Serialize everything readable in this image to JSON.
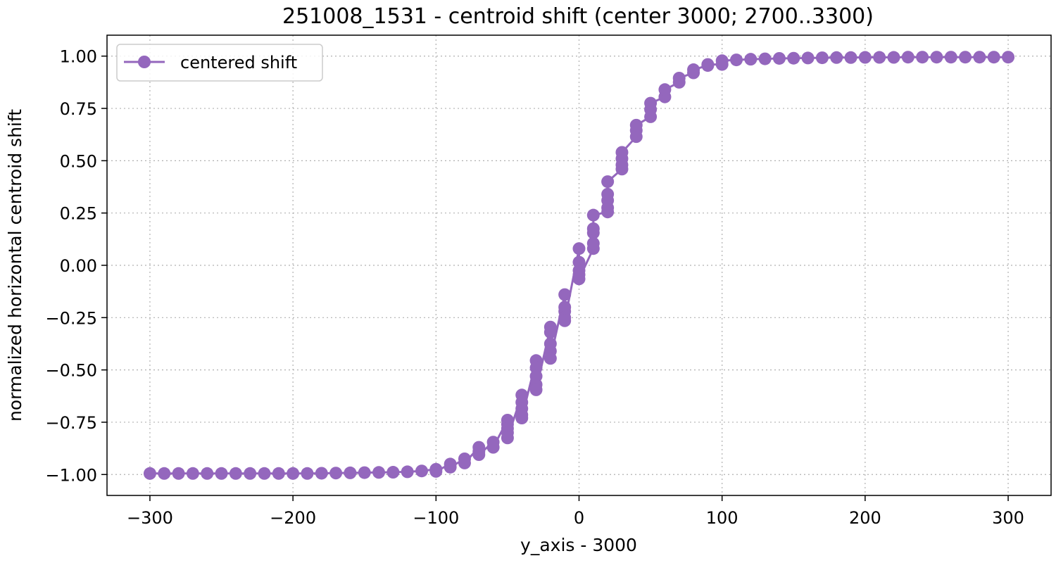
{
  "chart_data": {
    "type": "line",
    "title": "251008_1531 - centroid shift (center 3000; 2700..3300)",
    "xlabel": "y_axis - 3000",
    "ylabel": "normalized horizontal centroid shift",
    "xlim": [
      -330,
      330
    ],
    "ylim": [
      -1.1,
      1.1
    ],
    "xticks": [
      -300,
      -200,
      -100,
      0,
      100,
      200,
      300
    ],
    "xtick_labels": [
      "−300",
      "−200",
      "−100",
      "0",
      "100",
      "200",
      "300"
    ],
    "yticks": [
      -1.0,
      -0.75,
      -0.5,
      -0.25,
      0.0,
      0.25,
      0.5,
      0.75,
      1.0
    ],
    "ytick_labels": [
      "−1.00",
      "−0.75",
      "−0.50",
      "−0.25",
      "0.00",
      "0.25",
      "0.50",
      "0.75",
      "1.00"
    ],
    "grid": true,
    "legend_position": "top-left",
    "series": [
      {
        "name": "centered shift",
        "color": "#9467bd",
        "marker": "circle",
        "points": [
          [
            -300,
            -0.995
          ],
          [
            -290,
            -0.995
          ],
          [
            -280,
            -0.995
          ],
          [
            -270,
            -0.995
          ],
          [
            -260,
            -0.995
          ],
          [
            -250,
            -0.995
          ],
          [
            -240,
            -0.995
          ],
          [
            -230,
            -0.995
          ],
          [
            -220,
            -0.995
          ],
          [
            -210,
            -0.995
          ],
          [
            -200,
            -0.995
          ],
          [
            -190,
            -0.995
          ],
          [
            -180,
            -0.994
          ],
          [
            -170,
            -0.993
          ],
          [
            -160,
            -0.992
          ],
          [
            -150,
            -0.991
          ],
          [
            -140,
            -0.99
          ],
          [
            -130,
            -0.989
          ],
          [
            -120,
            -0.987
          ],
          [
            -110,
            -0.983
          ],
          [
            -100,
            -0.975
          ],
          [
            -100,
            -0.985
          ],
          [
            -90,
            -0.95
          ],
          [
            -90,
            -0.965
          ],
          [
            -80,
            -0.925
          ],
          [
            -80,
            -0.945
          ],
          [
            -70,
            -0.87
          ],
          [
            -70,
            -0.89
          ],
          [
            -70,
            -0.905
          ],
          [
            -60,
            -0.845
          ],
          [
            -60,
            -0.87
          ],
          [
            -50,
            -0.74
          ],
          [
            -50,
            -0.76
          ],
          [
            -50,
            -0.78
          ],
          [
            -50,
            -0.8
          ],
          [
            -50,
            -0.825
          ],
          [
            -40,
            -0.62
          ],
          [
            -40,
            -0.655
          ],
          [
            -40,
            -0.685
          ],
          [
            -40,
            -0.715
          ],
          [
            -40,
            -0.73
          ],
          [
            -30,
            -0.455
          ],
          [
            -30,
            -0.49
          ],
          [
            -30,
            -0.53
          ],
          [
            -30,
            -0.57
          ],
          [
            -30,
            -0.595
          ],
          [
            -20,
            -0.295
          ],
          [
            -20,
            -0.32
          ],
          [
            -20,
            -0.375
          ],
          [
            -20,
            -0.41
          ],
          [
            -20,
            -0.445
          ],
          [
            -10,
            -0.14
          ],
          [
            -10,
            -0.2
          ],
          [
            -10,
            -0.22
          ],
          [
            -10,
            -0.25
          ],
          [
            -10,
            -0.265
          ],
          [
            0,
            0.08
          ],
          [
            0,
            0.015
          ],
          [
            0,
            -0.025
          ],
          [
            0,
            -0.045
          ],
          [
            0,
            -0.065
          ],
          [
            10,
            0.08
          ],
          [
            10,
            0.105
          ],
          [
            10,
            0.155
          ],
          [
            10,
            0.175
          ],
          [
            10,
            0.24
          ],
          [
            20,
            0.255
          ],
          [
            20,
            0.275
          ],
          [
            20,
            0.31
          ],
          [
            20,
            0.34
          ],
          [
            20,
            0.4
          ],
          [
            30,
            0.46
          ],
          [
            30,
            0.48
          ],
          [
            30,
            0.51
          ],
          [
            30,
            0.54
          ],
          [
            40,
            0.615
          ],
          [
            40,
            0.645
          ],
          [
            40,
            0.67
          ],
          [
            50,
            0.71
          ],
          [
            50,
            0.745
          ],
          [
            50,
            0.775
          ],
          [
            60,
            0.805
          ],
          [
            60,
            0.84
          ],
          [
            70,
            0.875
          ],
          [
            70,
            0.895
          ],
          [
            80,
            0.92
          ],
          [
            80,
            0.935
          ],
          [
            90,
            0.955
          ],
          [
            90,
            0.96
          ],
          [
            100,
            0.96
          ],
          [
            100,
            0.978
          ],
          [
            110,
            0.982
          ],
          [
            120,
            0.985
          ],
          [
            130,
            0.987
          ],
          [
            140,
            0.989
          ],
          [
            150,
            0.99
          ],
          [
            160,
            0.991
          ],
          [
            170,
            0.992
          ],
          [
            180,
            0.993
          ],
          [
            190,
            0.993
          ],
          [
            200,
            0.994
          ],
          [
            210,
            0.994
          ],
          [
            220,
            0.994
          ],
          [
            230,
            0.995
          ],
          [
            240,
            0.995
          ],
          [
            250,
            0.995
          ],
          [
            260,
            0.995
          ],
          [
            270,
            0.995
          ],
          [
            280,
            0.995
          ],
          [
            290,
            0.995
          ],
          [
            300,
            0.995
          ]
        ]
      }
    ]
  }
}
